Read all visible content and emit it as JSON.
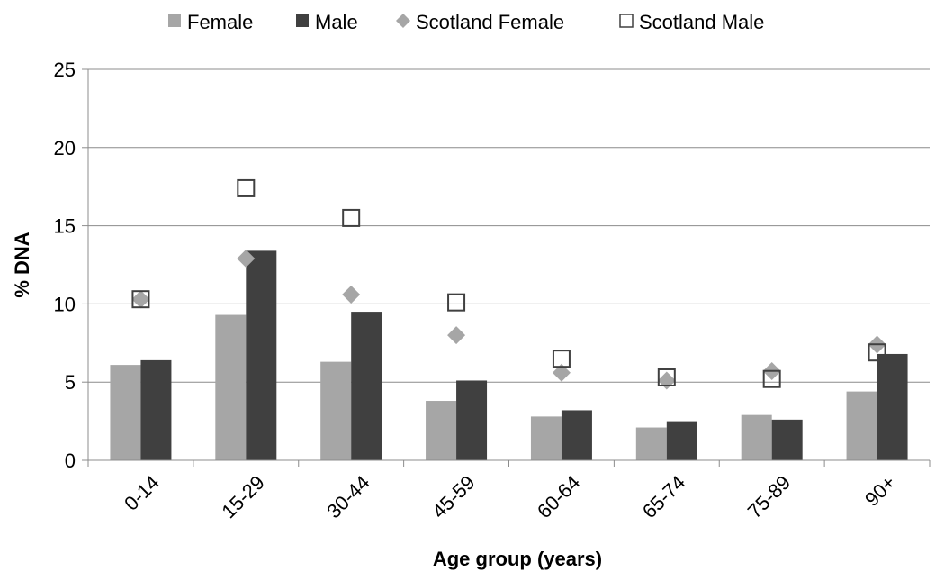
{
  "chart_data": {
    "type": "bar",
    "categories": [
      "0-14",
      "15-29",
      "30-44",
      "45-59",
      "60-64",
      "65-74",
      "75-89",
      "90+"
    ],
    "series": [
      {
        "name": "Female",
        "kind": "bar",
        "color": "#a6a6a6",
        "values": [
          6.1,
          9.3,
          6.3,
          3.8,
          2.8,
          2.1,
          2.9,
          4.4
        ]
      },
      {
        "name": "Male",
        "kind": "bar",
        "color": "#404040",
        "values": [
          6.4,
          13.4,
          9.5,
          5.1,
          3.2,
          2.5,
          2.6,
          6.8
        ]
      },
      {
        "name": "Scotland Female",
        "kind": "marker-diamond",
        "color": "#a6a6a6",
        "values": [
          10.3,
          12.9,
          10.6,
          8.0,
          5.6,
          5.1,
          5.7,
          7.4
        ]
      },
      {
        "name": "Scotland Male",
        "kind": "marker-square-open",
        "color": "#404040",
        "values": [
          10.3,
          17.4,
          15.5,
          10.1,
          6.5,
          5.3,
          5.2,
          6.9
        ]
      }
    ],
    "xlabel": "Age group (years)",
    "ylabel": "% DNA",
    "ylim": [
      0,
      25
    ],
    "yticks": [
      "0",
      "5",
      "10",
      "15",
      "20",
      "25"
    ],
    "grid": "horizontal",
    "legend_position": "top"
  }
}
